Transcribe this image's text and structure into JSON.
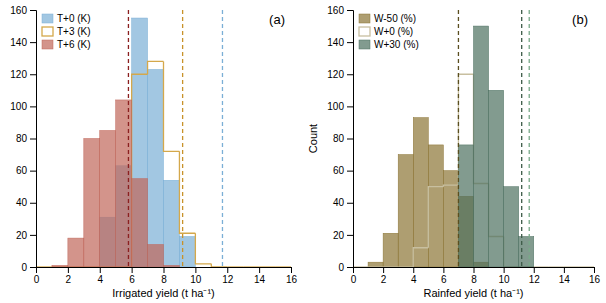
{
  "chart_data": [
    {
      "type": "histogram",
      "title": "(a)",
      "x_label": "Irrigated yield (t ha⁻¹)",
      "bins": [
        0,
        1,
        2,
        3,
        4,
        5,
        6,
        7,
        8,
        9,
        10,
        11,
        12,
        13,
        14,
        15,
        16
      ],
      "series": [
        {
          "name": "T+0 (K)",
          "color": "#7bafd6",
          "type": "bar",
          "values": [
            0,
            0,
            0,
            0,
            31,
            63,
            155,
            123,
            54,
            19,
            0,
            0,
            0,
            0,
            0,
            0
          ]
        },
        {
          "name": "T+3 (K)",
          "color": "#d4a84b",
          "type": "step",
          "values": [
            0,
            0,
            0,
            0,
            0,
            0,
            120,
            128,
            72,
            21,
            2,
            0,
            0,
            0,
            0,
            0
          ]
        },
        {
          "name": "T+6 (K)",
          "color": "#c0675a",
          "type": "bar",
          "values": [
            0,
            1,
            18,
            80,
            85,
            104,
            55,
            14,
            1,
            0,
            0,
            0,
            0,
            0,
            0,
            0
          ]
        }
      ],
      "reference_lines": [
        {
          "x": 5.8,
          "color": "#8b2020",
          "line_style": "dashed"
        },
        {
          "x": 9.2,
          "color": "#c8922a",
          "line_style": "dashed"
        },
        {
          "x": 11.7,
          "color": "#7bafd6",
          "line_style": "dashed"
        }
      ],
      "xlim": [
        0,
        16
      ],
      "ylim": [
        0,
        160
      ],
      "xticks": [
        0,
        2,
        4,
        6,
        8,
        10,
        12,
        14,
        16
      ],
      "yticks": [
        0,
        20,
        40,
        60,
        80,
        100,
        120,
        140,
        160
      ],
      "grid": false,
      "legend": "upper left"
    },
    {
      "type": "histogram",
      "title": "(b)",
      "x_label": "Rainfed yield (t ha⁻¹)",
      "y_label": "Count",
      "bins": [
        0,
        1,
        2,
        3,
        4,
        5,
        6,
        7,
        8,
        9,
        10,
        11,
        12,
        13,
        14,
        15,
        16
      ],
      "series": [
        {
          "name": "W-50 (%)",
          "color": "#8b7535",
          "type": "bar",
          "values": [
            0,
            3,
            21,
            70,
            93,
            76,
            60,
            44,
            3,
            0,
            0,
            0,
            0,
            0,
            0,
            0
          ]
        },
        {
          "name": "W+0 (%)",
          "color": "#c8bfa0",
          "type": "step",
          "values": [
            0,
            0,
            0,
            0,
            12,
            50,
            51,
            120,
            52,
            19,
            0,
            0,
            0,
            0,
            0,
            0
          ]
        },
        {
          "name": "W+30 (%)",
          "color": "#4d7060",
          "type": "bar",
          "values": [
            0,
            0,
            0,
            0,
            0,
            0,
            0,
            76,
            150,
            110,
            50,
            19,
            0,
            0,
            0,
            0
          ]
        }
      ],
      "reference_lines": [
        {
          "x": 7.0,
          "color": "#5a4e20",
          "line_style": "dashed"
        },
        {
          "x": 11.2,
          "color": "#3d5a48",
          "line_style": "dashed"
        },
        {
          "x": 11.7,
          "color": "#7aaa8a",
          "line_style": "dashed"
        }
      ],
      "xlim": [
        0,
        16
      ],
      "ylim": [
        0,
        160
      ],
      "xticks": [
        0,
        2,
        4,
        6,
        8,
        10,
        12,
        14,
        16
      ],
      "yticks": [
        0,
        20,
        40,
        60,
        80,
        100,
        120,
        140,
        160
      ],
      "grid": false,
      "legend": "upper left"
    }
  ]
}
